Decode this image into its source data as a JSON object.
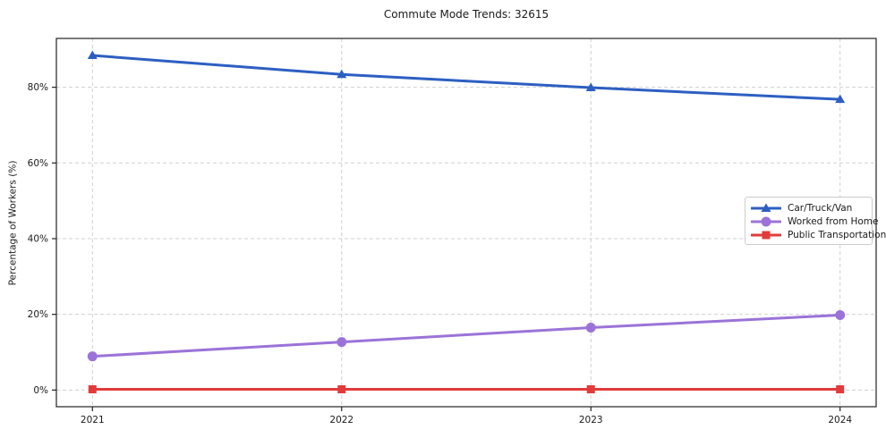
{
  "page": {
    "background": "#ffffff"
  },
  "chart_data": {
    "type": "line",
    "title": "Commute Mode Trends: 32615",
    "xlabel": "",
    "ylabel": "Percentage of Workers (%)",
    "categories": [
      "2021",
      "2022",
      "2023",
      "2024"
    ],
    "series": [
      {
        "name": "Car/Truck/Van",
        "values": [
          88.4,
          83.4,
          79.9,
          76.8
        ],
        "color": "#2d5fc2",
        "marker": "triangle"
      },
      {
        "name": "Worked from Home",
        "values": [
          8.9,
          12.7,
          16.5,
          19.8
        ],
        "color": "#9b73d8",
        "marker": "circle"
      },
      {
        "name": "Public Transportation",
        "values": [
          0.2,
          0.2,
          0.2,
          0.2
        ],
        "color": "#e23b3b",
        "marker": "square"
      }
    ],
    "ylim": [
      -4.4,
      92.9
    ],
    "yticks": [
      0,
      20,
      40,
      60,
      80
    ],
    "ytick_labels": [
      "0%",
      "20%",
      "40%",
      "60%",
      "80%"
    ],
    "grid": true,
    "grid_style": "dashed",
    "legend_position": "center right",
    "colors": {
      "grid": "#d0d0d0",
      "spine": "#222222",
      "text": "#1a1a1a"
    }
  }
}
